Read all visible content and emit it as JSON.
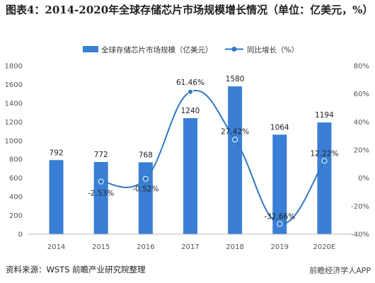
{
  "title": "图表4：2014-2020年全球存储芯片市场规模增长情况（单位：亿美元，%）",
  "source": "资料来源：WSTS 前瞻产业研究院整理",
  "brand": "前瞻经济学人APP",
  "chart_data": {
    "type": "bar",
    "categories": [
      "2014",
      "2015",
      "2016",
      "2017",
      "2018",
      "2019",
      "2020E"
    ],
    "series": [
      {
        "name": "全球存储芯片市场规模（亿美元）",
        "kind": "bar",
        "axis": "left",
        "values": [
          792,
          772,
          768,
          1240,
          1580,
          1064,
          1194
        ],
        "labels": [
          "792",
          "772",
          "768",
          "1240",
          "1580",
          "1064",
          "1194"
        ],
        "color": "#3a7fd5"
      },
      {
        "name": "同比增长（%）",
        "kind": "line",
        "axis": "right",
        "values": [
          null,
          -2.53,
          -0.52,
          61.46,
          27.42,
          -32.66,
          12.22
        ],
        "labels": [
          "",
          "-2.53%",
          "-0.52%",
          "61.46%",
          "27.42%",
          "-32.66%",
          "12.22%"
        ],
        "color": "#2f79c6"
      }
    ],
    "y_left": {
      "min": 0,
      "max": 1800,
      "ticks": [
        "0",
        "200",
        "400",
        "600",
        "800",
        "1000",
        "1200",
        "1400",
        "1600",
        "1800"
      ]
    },
    "y_right": {
      "min": -40,
      "max": 80,
      "ticks": [
        "-40%",
        "-20%",
        "0%",
        "20%",
        "40%",
        "60%",
        "80%"
      ]
    },
    "legend_position": "top-center",
    "grid": false
  }
}
